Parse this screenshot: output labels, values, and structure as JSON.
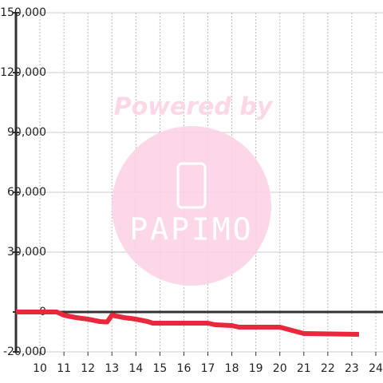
{
  "chart_data": {
    "type": "line",
    "watermark": {
      "line1": "Powered by",
      "line2": "PAPIMO"
    },
    "x": [
      9.0,
      10.7,
      11.0,
      11.5,
      12.0,
      12.5,
      12.8,
      13.0,
      13.5,
      14.0,
      14.5,
      14.7,
      16.0,
      17.0,
      17.3,
      18.0,
      18.3,
      20.0,
      20.5,
      21.0,
      23.3
    ],
    "series": [
      {
        "color": "#e8283c",
        "values": [
          0,
          0,
          -1600,
          -2800,
          -3600,
          -4800,
          -5000,
          -1600,
          -2800,
          -3600,
          -4800,
          -5600,
          -5600,
          -5600,
          -6400,
          -6800,
          -7600,
          -7600,
          -9200,
          -10800,
          -11200
        ]
      }
    ],
    "xlim": [
      9,
      24.3
    ],
    "xticks": [
      10,
      11,
      12,
      13,
      14,
      15,
      16,
      17,
      18,
      19,
      20,
      21,
      22,
      23,
      24
    ],
    "ylim": [
      -20000,
      150000
    ],
    "yticks": [
      {
        "value": -20000,
        "label": "-20,000"
      },
      0,
      {
        "value": 30000,
        "label": "30,000"
      },
      {
        "value": 60000,
        "label": "60,000"
      },
      {
        "value": 90000,
        "label": "90,000"
      },
      {
        "value": 120000,
        "label": "120,000"
      },
      {
        "value": 150000,
        "label": "150,000"
      }
    ],
    "grid": true
  }
}
